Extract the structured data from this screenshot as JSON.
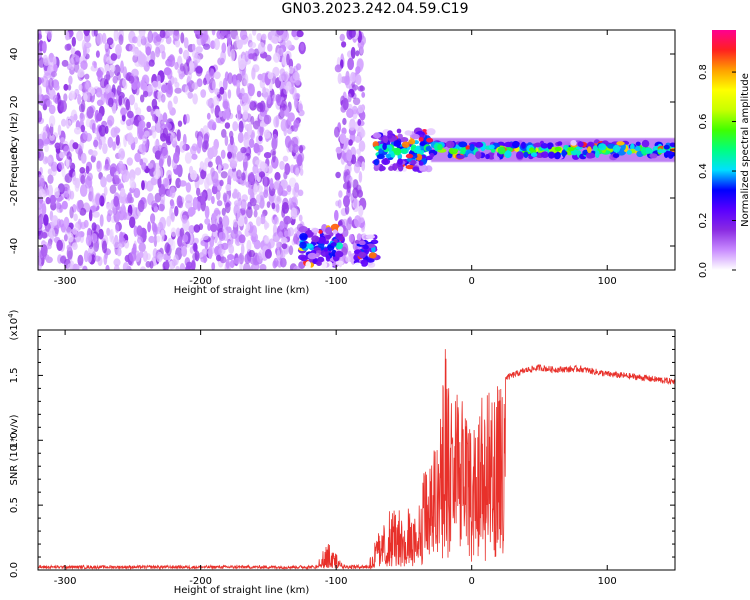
{
  "title": "GN03.2023.242.04.59.C19",
  "chart_data": [
    {
      "type": "heatmap",
      "xlabel": "Height of straight line (km)",
      "ylabel": "Frequency (Hz)",
      "xlim": [
        -320,
        150
      ],
      "ylim": [
        -50,
        50
      ],
      "xticks": [
        -300,
        -200,
        -100,
        0,
        100
      ],
      "yticks": [
        -40,
        -20,
        0,
        20,
        40
      ],
      "colorbar": {
        "label": "Normalized spectral amplitude",
        "range": [
          0.0,
          0.97
        ],
        "ticks": [
          "0.0",
          "0.2",
          "0.4",
          "0.6",
          "0.8"
        ],
        "tick_values": [
          0.0,
          0.2,
          0.4,
          0.6,
          0.8
        ],
        "colors": [
          "#ffffff",
          "#c98cff",
          "#8a2be2",
          "#5a00ff",
          "#0000ff",
          "#00e0ff",
          "#00ff80",
          "#40ff00",
          "#c8ff00",
          "#ffff00",
          "#ffa000",
          "#ff2020",
          "#ff0090"
        ]
      },
      "regions": [
        {
          "name": "noise",
          "x": [
            -320,
            -125
          ],
          "y": [
            -50,
            50
          ],
          "level": 0.15
        },
        {
          "name": "noise",
          "x": [
            -100,
            -80
          ],
          "y": [
            -50,
            50
          ],
          "level": 0.15
        },
        {
          "name": "low-band",
          "x": [
            -125,
            -95
          ],
          "y": [
            -48,
            -32
          ],
          "level": 0.35
        },
        {
          "name": "low-band",
          "x": [
            -85,
            -70
          ],
          "y": [
            -48,
            -36
          ],
          "level": 0.35
        },
        {
          "name": "signal",
          "x": [
            -72,
            -30
          ],
          "y": [
            -8,
            8
          ],
          "level": 0.45
        },
        {
          "name": "signal",
          "x": [
            -30,
            150
          ],
          "y": [
            -3,
            3
          ],
          "level": 0.6
        }
      ]
    },
    {
      "type": "line",
      "xlabel": "Height of straight line (km)",
      "ylabel": "SNR (10 * v/v)",
      "scale_label": "(x10",
      "scale_exp": "4",
      "scale_close": ")",
      "xlim": [
        -320,
        150
      ],
      "ylim": [
        0,
        18500
      ],
      "xticks": [
        -300,
        -200,
        -100,
        0,
        100
      ],
      "yticks": [
        0,
        5000,
        10000,
        15000
      ],
      "ytick_labels": [
        "0.0",
        "0.5",
        "1.0",
        "1.5"
      ],
      "color": "#e8302a",
      "series": [
        {
          "x": [
            -320,
            -200,
            -115,
            -110,
            -105,
            -100,
            -95,
            -90,
            -80,
            -75,
            -70,
            -65,
            -60,
            -55,
            -50,
            -45,
            -40,
            -35,
            -30,
            -25,
            -22,
            -20,
            -18,
            -15,
            -12,
            -10,
            -8,
            -5,
            0,
            5,
            10,
            15,
            20,
            25,
            30,
            35,
            40,
            50,
            60,
            80,
            100,
            120,
            150
          ],
          "y": [
            150,
            180,
            300,
            1500,
            2200,
            1800,
            250,
            150,
            200,
            1000,
            2500,
            3500,
            4500,
            5000,
            3000,
            6000,
            4000,
            7500,
            8500,
            11000,
            15500,
            18000,
            16500,
            13000,
            17500,
            15000,
            12000,
            13500,
            10500,
            13000,
            12500,
            14000,
            13500,
            14800,
            15000,
            15200,
            15400,
            15600,
            15450,
            15500,
            15100,
            14900,
            14500
          ]
        }
      ]
    }
  ]
}
